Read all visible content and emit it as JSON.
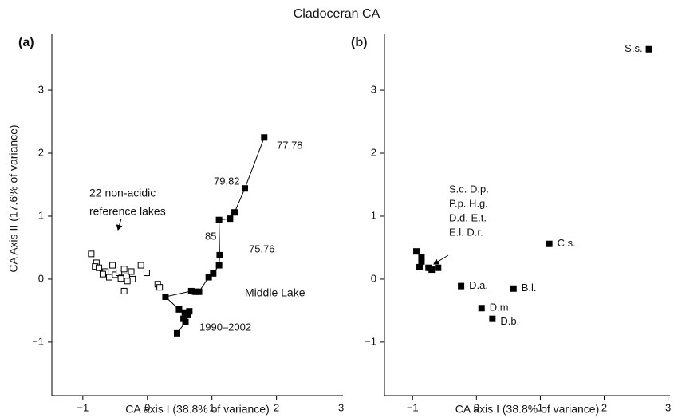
{
  "title": "Cladoceran CA",
  "chart_data": [
    {
      "type": "scatter",
      "panel_label": "(a)",
      "x_label": "CA axis I (38.8% of variance)",
      "y_label": "CA Axis II (17.6% of variance)",
      "xlim": [
        -1.48,
        3.03
      ],
      "ylim": [
        -1.85,
        3.9
      ],
      "xticks": [
        {
          "value": -1,
          "label": "−1"
        },
        0,
        1,
        2,
        3
      ],
      "yticks": [
        {
          "value": -1,
          "label": "−1"
        },
        0,
        1,
        2,
        3
      ],
      "series": [
        {
          "marker": "open",
          "color": "#000000",
          "connect": false,
          "x": [
            -0.87,
            -0.79,
            -0.81,
            -0.75,
            -0.65,
            -0.69,
            -0.59,
            -0.54,
            -0.5,
            -0.44,
            -0.4,
            -0.32,
            -0.23,
            -0.36,
            -0.1,
            -0.01,
            -0.25,
            -0.31,
            -0.41,
            -0.36,
            0.16,
            0.19
          ],
          "values": [
            0.4,
            0.26,
            0.2,
            0.18,
            0.12,
            0.08,
            0.03,
            0.22,
            0.07,
            0.1,
            0.02,
            0.04,
            0.0,
            0.16,
            0.22,
            0.1,
            0.12,
            -0.03,
            0.01,
            -0.19,
            -0.08,
            -0.13
          ]
        },
        {
          "marker": "filled",
          "color": "#000000",
          "connect": true,
          "x": [
            1.81,
            1.51,
            1.35,
            1.28,
            1.11,
            1.12,
            1.11,
            1.02,
            0.95,
            0.8,
            0.74,
            0.68,
            0.28,
            0.49,
            0.58,
            0.65,
            0.63,
            0.56,
            0.59,
            0.46
          ],
          "values": [
            2.25,
            1.44,
            1.06,
            0.96,
            0.94,
            0.38,
            0.22,
            0.09,
            0.03,
            -0.2,
            -0.2,
            -0.19,
            -0.28,
            -0.48,
            -0.53,
            -0.51,
            -0.57,
            -0.63,
            -0.68,
            -0.86
          ]
        }
      ],
      "annotations": [
        "77,78",
        "79,82",
        "85",
        "75,76",
        "1990–2002",
        "Middle Lake",
        "22 non-acidic",
        "reference lakes"
      ]
    },
    {
      "type": "scatter",
      "panel_label": "(b)",
      "x_label": "CA axis I (38.8% of variance)",
      "xlim": [
        -1.44,
        3.03
      ],
      "ylim": [
        -1.85,
        3.9
      ],
      "xticks": [
        {
          "value": -1,
          "label": "−1"
        },
        0,
        1,
        2,
        3
      ],
      "yticks": [
        {
          "value": -1,
          "label": "−1"
        },
        0,
        1,
        2,
        3
      ],
      "series": [
        {
          "marker": "filled",
          "color": "#000000",
          "connect": false,
          "x": [
            2.7,
            1.14,
            0.58,
            -0.24,
            0.08,
            0.25,
            -0.94,
            -0.86,
            -0.86,
            -0.89,
            -0.75,
            -0.7,
            -0.6
          ],
          "values": [
            3.65,
            0.56,
            -0.15,
            -0.11,
            -0.46,
            -0.63,
            0.44,
            0.35,
            0.28,
            0.19,
            0.18,
            0.15,
            0.18
          ],
          "point_labels": [
            "S.s.",
            "C.s.",
            "B.l.",
            "D.a.",
            "D.m.",
            "D.b.",
            null,
            null,
            null,
            null,
            null,
            null,
            null
          ]
        }
      ],
      "annotations": [
        "S.c.  D.p.",
        "P.p.  H.g.",
        "D.d.  E.t.",
        "E.l.  D.r."
      ]
    }
  ]
}
